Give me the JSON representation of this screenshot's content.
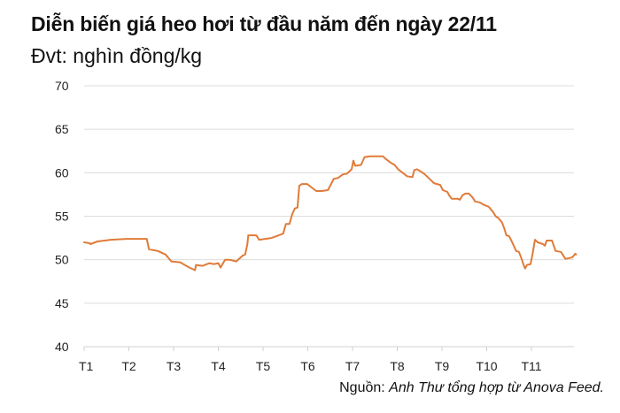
{
  "header": {
    "title": "Diễn biến giá heo hơi từ đầu năm đến ngày 22/11",
    "unit": "Đvt: nghìn đồng/kg"
  },
  "source": {
    "prefix": "Nguồn: ",
    "text": "Anh Thư tổng hợp từ Anova Feed."
  },
  "colors": {
    "line": "#E07B39",
    "grid": "#DCDCDC",
    "axis": "#D0D0D0",
    "text": "#222222"
  },
  "chart_data": {
    "type": "line",
    "title": "Diễn biến giá heo hơi từ đầu năm đến ngày 22/11",
    "subtitle": "Đvt: nghìn đồng/kg",
    "xlabel": "",
    "ylabel": "nghìn đồng/kg",
    "ylim": [
      40,
      70
    ],
    "yticks": [
      40,
      45,
      50,
      55,
      60,
      65,
      70
    ],
    "xticks": [
      "T1",
      "T2",
      "T3",
      "T4",
      "T5",
      "T6",
      "T7",
      "T8",
      "T9",
      "T10",
      "T11"
    ],
    "grid": true,
    "legend": "none",
    "annotation": "Nguồn: Anh Thư tổng hợp từ Anova Feed.",
    "series": [
      {
        "name": "Giá heo hơi",
        "x_unit": "month (1 = T1)",
        "points": [
          [
            1.0,
            52.0
          ],
          [
            1.12,
            51.9
          ],
          [
            1.14,
            51.8
          ],
          [
            1.3,
            52.1
          ],
          [
            1.6,
            52.3
          ],
          [
            1.95,
            52.4
          ],
          [
            2.2,
            52.4
          ],
          [
            2.4,
            52.4
          ],
          [
            2.45,
            51.2
          ],
          [
            2.65,
            51.0
          ],
          [
            2.82,
            50.6
          ],
          [
            2.95,
            49.8
          ],
          [
            3.15,
            49.7
          ],
          [
            3.25,
            49.4
          ],
          [
            3.35,
            49.1
          ],
          [
            3.48,
            48.8
          ],
          [
            3.5,
            49.4
          ],
          [
            3.65,
            49.3
          ],
          [
            3.8,
            49.6
          ],
          [
            3.9,
            49.5
          ],
          [
            4.0,
            49.6
          ],
          [
            4.05,
            49.1
          ],
          [
            4.15,
            50.0
          ],
          [
            4.25,
            50.0
          ],
          [
            4.4,
            49.8
          ],
          [
            4.55,
            50.5
          ],
          [
            4.6,
            50.6
          ],
          [
            4.65,
            51.8
          ],
          [
            4.67,
            52.8
          ],
          [
            4.85,
            52.8
          ],
          [
            4.91,
            52.3
          ],
          [
            5.05,
            52.4
          ],
          [
            5.19,
            52.5
          ],
          [
            5.35,
            52.8
          ],
          [
            5.45,
            53.0
          ],
          [
            5.51,
            54.1
          ],
          [
            5.59,
            54.1
          ],
          [
            5.65,
            55.2
          ],
          [
            5.71,
            55.9
          ],
          [
            5.77,
            56.0
          ],
          [
            5.81,
            58.5
          ],
          [
            5.87,
            58.7
          ],
          [
            5.99,
            58.7
          ],
          [
            6.11,
            58.2
          ],
          [
            6.19,
            57.9
          ],
          [
            6.31,
            57.9
          ],
          [
            6.45,
            58.0
          ],
          [
            6.51,
            58.6
          ],
          [
            6.58,
            59.3
          ],
          [
            6.68,
            59.4
          ],
          [
            6.78,
            59.8
          ],
          [
            6.88,
            59.9
          ],
          [
            6.98,
            60.4
          ],
          [
            7.02,
            61.4
          ],
          [
            7.06,
            60.8
          ],
          [
            7.19,
            60.9
          ],
          [
            7.27,
            61.8
          ],
          [
            7.39,
            61.9
          ],
          [
            7.58,
            61.9
          ],
          [
            7.68,
            61.9
          ],
          [
            7.74,
            61.6
          ],
          [
            7.84,
            61.2
          ],
          [
            7.94,
            60.9
          ],
          [
            8.02,
            60.4
          ],
          [
            8.12,
            60.0
          ],
          [
            8.22,
            59.6
          ],
          [
            8.34,
            59.5
          ],
          [
            8.38,
            60.3
          ],
          [
            8.44,
            60.4
          ],
          [
            8.54,
            60.1
          ],
          [
            8.62,
            59.8
          ],
          [
            8.72,
            59.3
          ],
          [
            8.82,
            58.8
          ],
          [
            8.96,
            58.6
          ],
          [
            9.02,
            58.0
          ],
          [
            9.12,
            57.8
          ],
          [
            9.16,
            57.4
          ],
          [
            9.22,
            57.0
          ],
          [
            9.36,
            57.0
          ],
          [
            9.4,
            56.9
          ],
          [
            9.46,
            57.4
          ],
          [
            9.52,
            57.6
          ],
          [
            9.6,
            57.6
          ],
          [
            9.68,
            57.2
          ],
          [
            9.74,
            56.7
          ],
          [
            9.84,
            56.6
          ],
          [
            9.94,
            56.3
          ],
          [
            10.04,
            56.1
          ],
          [
            10.08,
            55.9
          ],
          [
            10.14,
            55.5
          ],
          [
            10.2,
            55.0
          ],
          [
            10.26,
            54.8
          ],
          [
            10.34,
            54.3
          ],
          [
            10.4,
            53.5
          ],
          [
            10.44,
            52.8
          ],
          [
            10.5,
            52.7
          ],
          [
            10.56,
            52.1
          ],
          [
            10.66,
            51.0
          ],
          [
            10.72,
            50.9
          ],
          [
            10.78,
            50.1
          ],
          [
            10.84,
            49.2
          ],
          [
            10.86,
            49.0
          ],
          [
            10.9,
            49.4
          ],
          [
            10.98,
            49.5
          ],
          [
            11.02,
            50.5
          ],
          [
            11.08,
            52.3
          ],
          [
            11.14,
            52.0
          ],
          [
            11.26,
            51.8
          ],
          [
            11.3,
            51.6
          ],
          [
            11.34,
            52.2
          ],
          [
            11.46,
            52.2
          ],
          [
            11.54,
            51.0
          ],
          [
            11.66,
            50.9
          ],
          [
            11.76,
            50.1
          ],
          [
            11.86,
            50.2
          ],
          [
            11.92,
            50.3
          ],
          [
            11.98,
            50.7
          ],
          [
            12.0,
            50.6
          ]
        ]
      }
    ]
  }
}
